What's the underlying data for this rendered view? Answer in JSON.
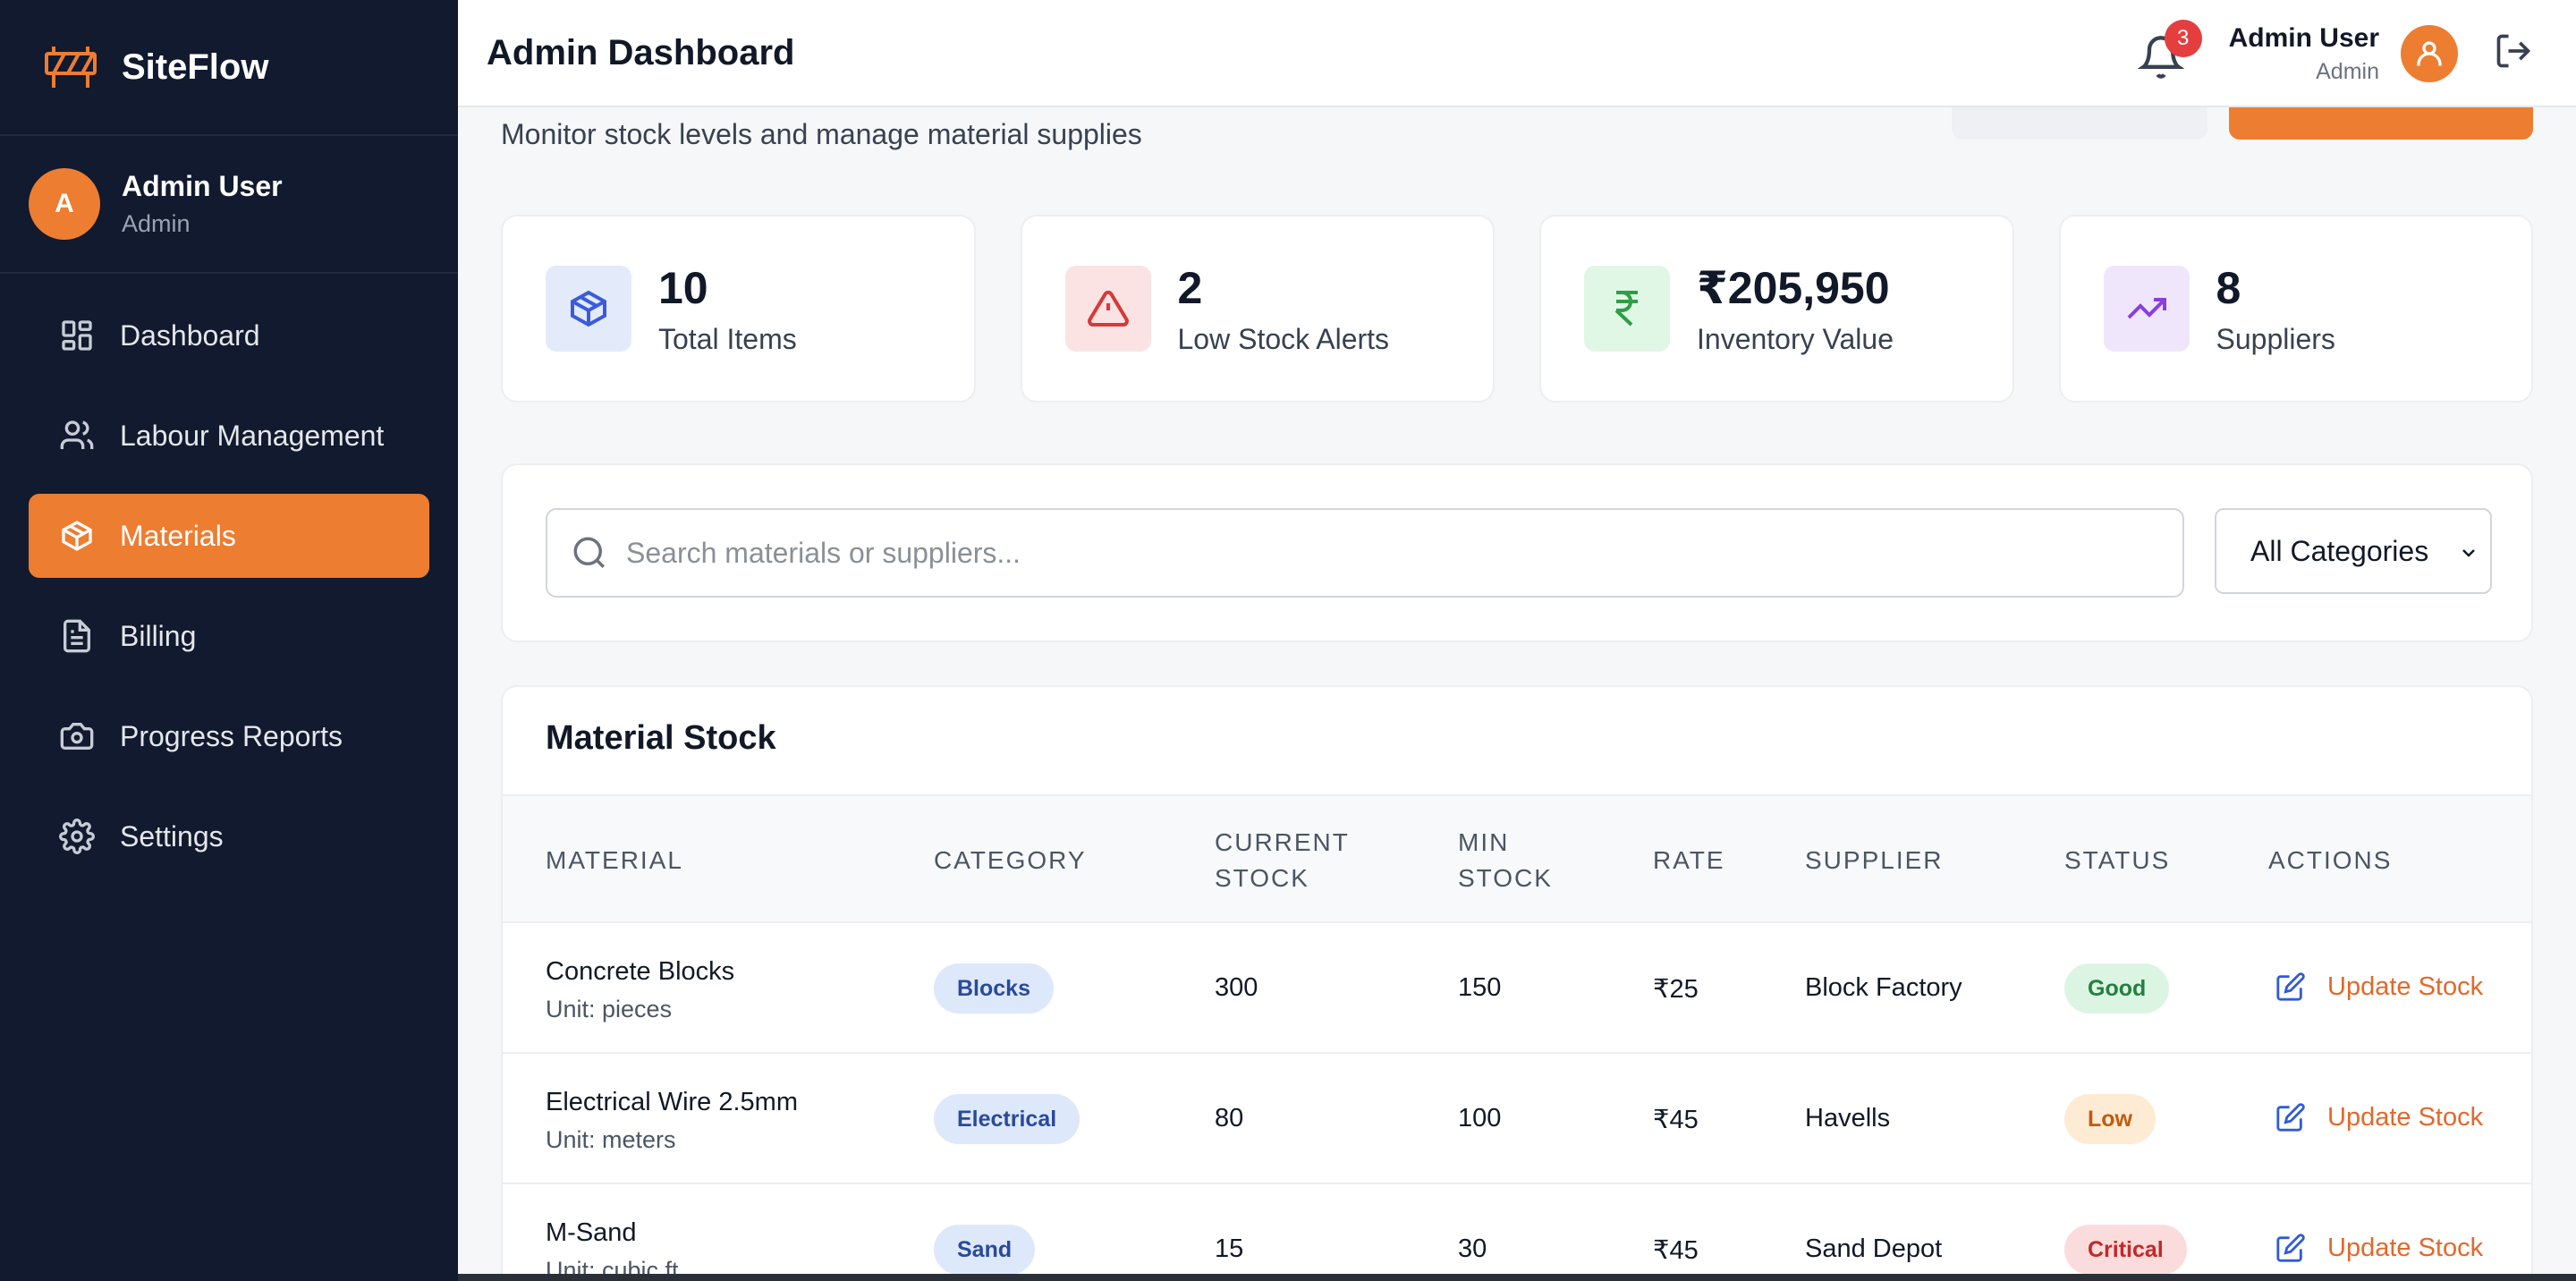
{
  "brand": {
    "name": "SiteFlow"
  },
  "sidebar_user": {
    "initial": "A",
    "name": "Admin User",
    "role": "Admin"
  },
  "nav": [
    {
      "label": "Dashboard",
      "icon": "dashboard-icon",
      "active": false
    },
    {
      "label": "Labour Management",
      "icon": "users-icon",
      "active": false
    },
    {
      "label": "Materials",
      "icon": "box-icon",
      "active": true
    },
    {
      "label": "Billing",
      "icon": "file-icon",
      "active": false
    },
    {
      "label": "Progress Reports",
      "icon": "camera-icon",
      "active": false
    },
    {
      "label": "Settings",
      "icon": "gear-icon",
      "active": false
    }
  ],
  "header": {
    "title": "Admin Dashboard",
    "notification_count": "3",
    "user_name": "Admin User",
    "user_role": "Admin"
  },
  "page": {
    "subtitle": "Monitor stock levels and manage material supplies"
  },
  "stats": [
    {
      "value": "10",
      "label": "Total Items",
      "icon": "box-icon",
      "color": "#3b5bdb",
      "bg": "#e3ebfb"
    },
    {
      "value": "2",
      "label": "Low Stock Alerts",
      "icon": "warning-icon",
      "color": "#d63939",
      "bg": "#fbe3e3"
    },
    {
      "value": "₹205,950",
      "label": "Inventory Value",
      "icon": "rupee-icon",
      "color": "#2f9e44",
      "bg": "#e1f7e6"
    },
    {
      "value": "8",
      "label": "Suppliers",
      "icon": "trending-up-icon",
      "color": "#8a3ee0",
      "bg": "#f0e6fc"
    }
  ],
  "filters": {
    "search_placeholder": "Search materials or suppliers...",
    "category_selected": "All Categories"
  },
  "table": {
    "title": "Material Stock",
    "columns": [
      "MATERIAL",
      "CATEGORY",
      "CURRENT STOCK",
      "MIN STOCK",
      "RATE",
      "SUPPLIER",
      "STATUS",
      "ACTIONS"
    ],
    "columns_split": {
      "current_1": "CURRENT",
      "current_2": "STOCK",
      "min_1": "MIN",
      "min_2": "STOCK"
    },
    "rows": [
      {
        "name": "Concrete Blocks",
        "unit": "Unit: pieces",
        "category": "Blocks",
        "current": "300",
        "min": "150",
        "rate": "₹25",
        "supplier": "Block Factory",
        "status": "Good",
        "status_type": "good",
        "action": "Update Stock"
      },
      {
        "name": "Electrical Wire 2.5mm",
        "unit": "Unit: meters",
        "category": "Electrical",
        "current": "80",
        "min": "100",
        "rate": "₹45",
        "supplier": "Havells",
        "status": "Low",
        "status_type": "low",
        "action": "Update Stock"
      },
      {
        "name": "M-Sand",
        "unit": "Unit: cubic ft",
        "category": "Sand",
        "current": "15",
        "min": "30",
        "rate": "₹45",
        "supplier": "Sand Depot",
        "status": "Critical",
        "status_type": "critical",
        "action": "Update Stock"
      }
    ]
  }
}
